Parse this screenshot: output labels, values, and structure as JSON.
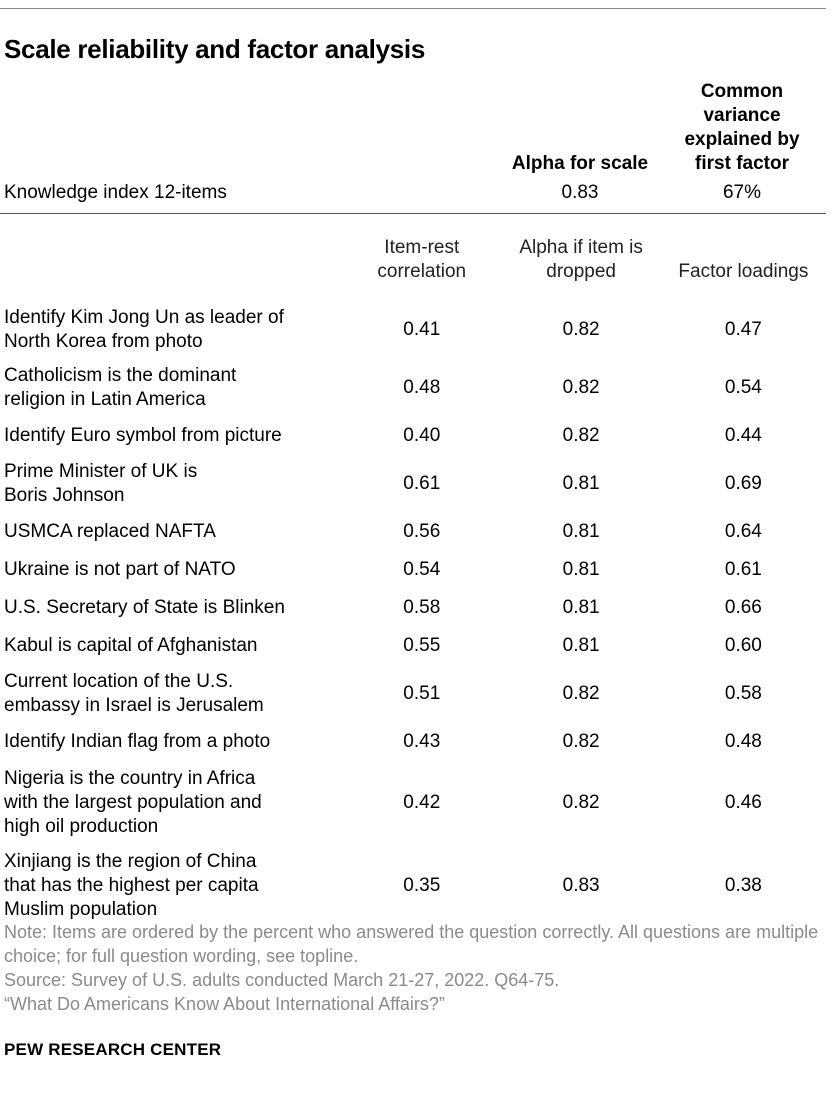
{
  "title": "Scale reliability and factor analysis",
  "summary_headers": {
    "alpha": "Alpha for scale",
    "variance": [
      "Common",
      "variance",
      "explained by",
      "first factor"
    ]
  },
  "index": {
    "label": "Knowledge index 12-items",
    "alpha": "0.83",
    "variance": "67%"
  },
  "columns": [
    [
      "Item-rest",
      "correlation"
    ],
    [
      "Alpha if item is",
      "dropped"
    ],
    [
      "Factor loadings"
    ]
  ],
  "rows": [
    {
      "label": [
        "Identify Kim Jong Un as leader of",
        "North Korea from photo"
      ],
      "irc": "0.41",
      "aid": "0.82",
      "fl": "0.47"
    },
    {
      "label": [
        "Catholicism is the dominant",
        "religion in Latin America"
      ],
      "irc": "0.48",
      "aid": "0.82",
      "fl": "0.54"
    },
    {
      "label": [
        "Identify Euro symbol from picture"
      ],
      "irc": "0.40",
      "aid": "0.82",
      "fl": "0.44"
    },
    {
      "label": [
        "Prime Minister of UK is",
        "Boris Johnson"
      ],
      "irc": "0.61",
      "aid": "0.81",
      "fl": "0.69"
    },
    {
      "label": [
        "USMCA replaced NAFTA"
      ],
      "irc": "0.56",
      "aid": "0.81",
      "fl": "0.64"
    },
    {
      "label": [
        "Ukraine is not part of NATO"
      ],
      "irc": "0.54",
      "aid": "0.81",
      "fl": "0.61"
    },
    {
      "label": [
        "U.S. Secretary of State is Blinken"
      ],
      "irc": "0.58",
      "aid": "0.81",
      "fl": "0.66"
    },
    {
      "label": [
        "Kabul is capital of Afghanistan"
      ],
      "irc": "0.55",
      "aid": "0.81",
      "fl": "0.60"
    },
    {
      "label": [
        "Current location of the U.S.",
        "embassy in Israel is Jerusalem"
      ],
      "irc": "0.51",
      "aid": "0.82",
      "fl": "0.58"
    },
    {
      "label": [
        "Identify Indian flag from a photo"
      ],
      "irc": "0.43",
      "aid": "0.82",
      "fl": "0.48"
    },
    {
      "label": [
        "Nigeria is the country in Africa",
        "with the largest population and",
        "high oil production"
      ],
      "irc": "0.42",
      "aid": "0.82",
      "fl": "0.46"
    },
    {
      "label": [
        "Xinjiang is the region of China",
        "that has the highest per capita",
        "Muslim population"
      ],
      "irc": "0.35",
      "aid": "0.83",
      "fl": "0.38"
    }
  ],
  "notes": [
    "Note: Items are ordered by the percent who answered the question correctly. All questions are multiple choice; for full question wording, see topline.",
    "Source: Survey of U.S. adults conducted March 21-27, 2022. Q64-75.",
    "“What Do Americans Know About International Affairs?”"
  ],
  "brand": "PEW RESEARCH CENTER"
}
